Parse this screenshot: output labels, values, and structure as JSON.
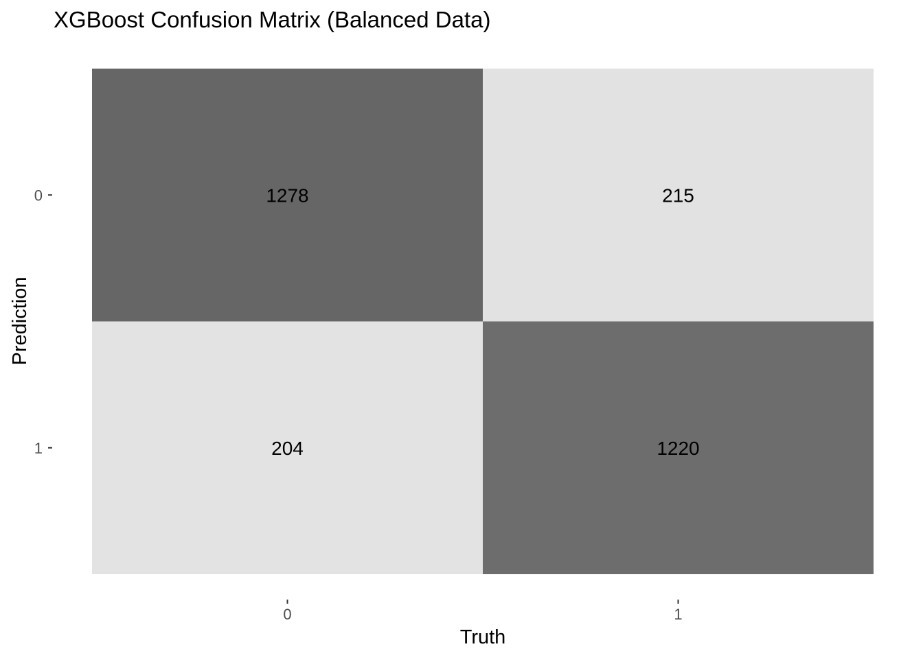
{
  "chart_data": {
    "type": "heatmap",
    "title": "XGBoost Confusion Matrix (Balanced Data)",
    "xlabel": "Truth",
    "ylabel": "Prediction",
    "x_categories": [
      "0",
      "1"
    ],
    "y_categories": [
      "0",
      "1"
    ],
    "cells": [
      {
        "prediction": "0",
        "truth": "0",
        "value": 1278
      },
      {
        "prediction": "0",
        "truth": "1",
        "value": 215
      },
      {
        "prediction": "1",
        "truth": "0",
        "value": 204
      },
      {
        "prediction": "1",
        "truth": "1",
        "value": 1220
      }
    ],
    "color_low": "#e3e3e3",
    "color_high": "#666666",
    "text_color": "#000000",
    "axis_text_color": "#4d4d4d",
    "grid": false,
    "legend": "none"
  }
}
